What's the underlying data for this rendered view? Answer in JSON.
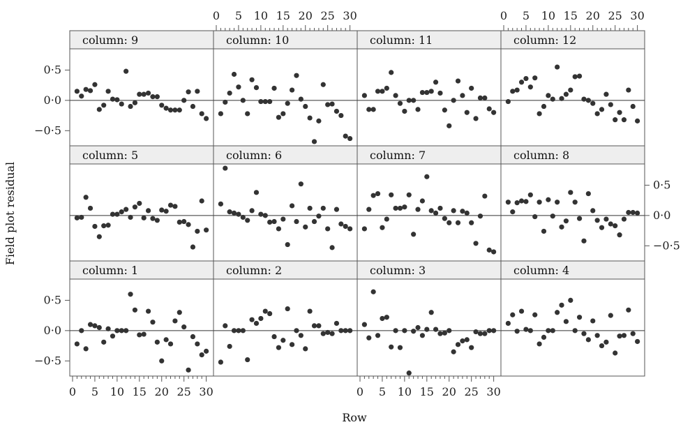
{
  "chart_data": {
    "type": "scatter",
    "xlabel": "Row",
    "ylabel": "Field plot residual",
    "xlim": [
      0,
      31
    ],
    "ylim": [
      -0.75,
      0.85
    ],
    "x_ticks": [
      0,
      5,
      10,
      15,
      20,
      25,
      30
    ],
    "x_tick_labels": [
      "0",
      "5",
      "10",
      "15",
      "20",
      "25",
      "30"
    ],
    "y_ticks": [
      -0.5,
      0.0,
      0.5
    ],
    "y_tick_labels": [
      "−0·5",
      "0·0",
      "0·5"
    ],
    "reference_line_y": 0,
    "colors": {
      "points": "#333333",
      "strip": "#eeeeee",
      "frame": "#555555",
      "refline": "#333333"
    },
    "panels": [
      {
        "label": "column: 9",
        "x": [
          1,
          2,
          3,
          4,
          5,
          6,
          7,
          8,
          9,
          10,
          11,
          12,
          13,
          14,
          15,
          16,
          17,
          18,
          19,
          20,
          21,
          22,
          23,
          24,
          25,
          26,
          27,
          28,
          29,
          30
        ],
        "y": [
          0.15,
          0.07,
          0.18,
          0.16,
          0.26,
          -0.15,
          -0.08,
          0.15,
          0.02,
          0.01,
          -0.06,
          0.48,
          -0.1,
          -0.04,
          0.1,
          0.1,
          0.12,
          0.06,
          0.06,
          -0.08,
          -0.13,
          -0.16,
          -0.16,
          -0.16,
          0.0,
          0.14,
          -0.1,
          0.15,
          -0.22,
          -0.3
        ]
      },
      {
        "label": "column: 10",
        "x": [
          1,
          2,
          3,
          4,
          5,
          6,
          7,
          8,
          9,
          10,
          11,
          12,
          13,
          14,
          15,
          16,
          17,
          18,
          19,
          20,
          21,
          22,
          23,
          24,
          25,
          26,
          27,
          28,
          29,
          30
        ],
        "y": [
          -0.22,
          -0.03,
          0.12,
          0.43,
          0.22,
          0.0,
          -0.22,
          0.34,
          0.21,
          -0.02,
          -0.02,
          -0.02,
          0.2,
          -0.28,
          -0.22,
          -0.05,
          0.17,
          0.41,
          0.02,
          -0.1,
          -0.29,
          -0.68,
          -0.34,
          0.26,
          -0.07,
          -0.06,
          -0.18,
          -0.25,
          -0.59,
          -0.63
        ]
      },
      {
        "label": "column: 11",
        "x": [
          1,
          2,
          3,
          4,
          5,
          6,
          7,
          8,
          9,
          10,
          11,
          12,
          13,
          14,
          15,
          16,
          17,
          18,
          19,
          20,
          21,
          22,
          23,
          24,
          25,
          26,
          27,
          28,
          29,
          30
        ],
        "y": [
          0.08,
          -0.15,
          -0.15,
          0.15,
          0.15,
          0.2,
          0.46,
          0.08,
          -0.05,
          -0.18,
          0.0,
          0.0,
          -0.15,
          0.13,
          0.13,
          0.15,
          0.3,
          0.12,
          -0.16,
          -0.42,
          0.0,
          0.32,
          0.08,
          -0.2,
          0.2,
          -0.3,
          0.04,
          0.04,
          -0.14,
          -0.2
        ]
      },
      {
        "label": "column: 12",
        "x": [
          1,
          2,
          3,
          4,
          5,
          6,
          7,
          8,
          9,
          10,
          11,
          12,
          13,
          14,
          15,
          16,
          17,
          18,
          19,
          20,
          21,
          22,
          23,
          24,
          25,
          26,
          27,
          28,
          29,
          30
        ],
        "y": [
          -0.02,
          0.15,
          0.17,
          0.3,
          0.36,
          0.22,
          0.37,
          -0.22,
          -0.1,
          0.08,
          0.02,
          0.55,
          0.03,
          0.1,
          0.17,
          0.39,
          0.4,
          0.02,
          0.0,
          -0.05,
          -0.22,
          -0.15,
          0.1,
          -0.07,
          -0.32,
          -0.2,
          -0.32,
          0.17,
          -0.1,
          -0.34
        ]
      },
      {
        "label": "column: 5",
        "x": [
          1,
          2,
          3,
          4,
          5,
          6,
          7,
          8,
          9,
          10,
          11,
          12,
          13,
          14,
          15,
          16,
          17,
          18,
          19,
          20,
          21,
          22,
          23,
          24,
          25,
          26,
          27,
          28,
          29,
          30
        ],
        "y": [
          -0.04,
          -0.03,
          0.3,
          0.12,
          -0.18,
          -0.35,
          -0.17,
          -0.16,
          0.02,
          0.02,
          0.06,
          0.1,
          -0.03,
          0.14,
          0.2,
          -0.04,
          0.08,
          -0.05,
          -0.08,
          0.09,
          0.07,
          0.17,
          0.15,
          -0.11,
          -0.1,
          -0.15,
          -0.52,
          -0.26,
          0.24,
          -0.24
        ]
      },
      {
        "label": "column: 6",
        "x": [
          1,
          2,
          3,
          4,
          5,
          6,
          7,
          8,
          9,
          10,
          11,
          12,
          13,
          14,
          15,
          16,
          17,
          18,
          19,
          20,
          21,
          22,
          23,
          24,
          25,
          26,
          27,
          28,
          29,
          30
        ],
        "y": [
          0.19,
          0.78,
          0.06,
          0.04,
          0.02,
          -0.03,
          -0.08,
          0.08,
          0.38,
          0.02,
          0.0,
          -0.11,
          -0.1,
          -0.22,
          -0.06,
          -0.48,
          0.16,
          -0.1,
          0.52,
          -0.19,
          0.12,
          -0.1,
          -0.01,
          0.12,
          -0.22,
          -0.53,
          0.1,
          -0.14,
          -0.18,
          -0.22
        ]
      },
      {
        "label": "column: 7",
        "x": [
          1,
          2,
          3,
          4,
          5,
          6,
          7,
          8,
          9,
          10,
          11,
          12,
          13,
          14,
          15,
          16,
          17,
          18,
          19,
          20,
          21,
          22,
          23,
          24,
          25,
          26,
          27,
          28,
          29,
          30
        ],
        "y": [
          -0.22,
          0.1,
          0.33,
          0.36,
          -0.2,
          -0.06,
          0.34,
          0.12,
          0.12,
          0.14,
          0.34,
          -0.31,
          0.1,
          0.24,
          0.64,
          0.08,
          0.04,
          0.12,
          -0.05,
          -0.12,
          0.08,
          -0.12,
          0.07,
          0.04,
          -0.12,
          -0.46,
          -0.01,
          0.32,
          -0.57,
          -0.6
        ]
      },
      {
        "label": "column: 8",
        "x": [
          1,
          2,
          3,
          4,
          5,
          6,
          7,
          8,
          9,
          10,
          11,
          12,
          13,
          14,
          15,
          16,
          17,
          18,
          19,
          20,
          21,
          22,
          23,
          24,
          25,
          26,
          27,
          28,
          29,
          30
        ],
        "y": [
          0.22,
          0.06,
          0.21,
          0.24,
          0.23,
          0.34,
          -0.02,
          0.22,
          -0.26,
          0.26,
          -0.01,
          0.22,
          -0.19,
          -0.09,
          0.38,
          0.22,
          -0.05,
          -0.42,
          0.36,
          0.08,
          -0.08,
          -0.2,
          -0.06,
          -0.14,
          -0.17,
          -0.32,
          -0.06,
          0.05,
          0.05,
          0.04
        ]
      },
      {
        "label": "column: 1",
        "x": [
          1,
          2,
          3,
          4,
          5,
          6,
          7,
          8,
          9,
          10,
          11,
          12,
          13,
          14,
          15,
          16,
          17,
          18,
          19,
          20,
          21,
          22,
          23,
          24,
          25,
          26,
          27,
          28,
          29,
          30
        ],
        "y": [
          -0.22,
          0.0,
          -0.3,
          0.1,
          0.08,
          0.05,
          -0.19,
          0.03,
          -0.09,
          0.0,
          0.0,
          0.0,
          0.6,
          0.34,
          -0.07,
          -0.06,
          0.32,
          0.14,
          -0.19,
          -0.5,
          -0.15,
          -0.22,
          0.16,
          0.3,
          0.06,
          -0.65,
          -0.1,
          -0.22,
          -0.4,
          -0.34
        ]
      },
      {
        "label": "column: 2",
        "x": [
          1,
          2,
          3,
          4,
          5,
          6,
          7,
          8,
          9,
          10,
          11,
          12,
          13,
          14,
          15,
          16,
          17,
          18,
          19,
          20,
          21,
          22,
          23,
          24,
          25,
          26,
          27,
          28,
          29,
          30
        ],
        "y": [
          -0.52,
          0.08,
          -0.26,
          0.0,
          0.0,
          0.0,
          -0.48,
          0.18,
          0.12,
          0.2,
          0.32,
          0.28,
          -0.1,
          -0.28,
          -0.16,
          0.36,
          -0.23,
          0.0,
          -0.08,
          -0.3,
          0.32,
          0.08,
          0.08,
          -0.05,
          -0.03,
          -0.05,
          0.12,
          0.0,
          0.0,
          0.0
        ]
      },
      {
        "label": "column: 3",
        "x": [
          1,
          2,
          3,
          4,
          5,
          6,
          7,
          8,
          9,
          10,
          11,
          12,
          13,
          14,
          15,
          16,
          17,
          18,
          19,
          20,
          21,
          22,
          23,
          24,
          25,
          26,
          27,
          28,
          29,
          30
        ],
        "y": [
          0.1,
          -0.12,
          0.64,
          -0.08,
          0.2,
          0.22,
          -0.27,
          0.0,
          -0.28,
          0.0,
          -0.7,
          -0.01,
          0.05,
          -0.08,
          0.02,
          0.3,
          0.02,
          -0.05,
          -0.04,
          0.0,
          -0.35,
          -0.23,
          -0.17,
          -0.15,
          -0.28,
          -0.02,
          -0.05,
          -0.05,
          0.0,
          0.0
        ]
      },
      {
        "label": "column: 4",
        "x": [
          1,
          2,
          3,
          4,
          5,
          6,
          7,
          8,
          9,
          10,
          11,
          12,
          13,
          14,
          15,
          16,
          17,
          18,
          19,
          20,
          21,
          22,
          23,
          24,
          25,
          26,
          27,
          28,
          29,
          30
        ],
        "y": [
          0.12,
          0.26,
          -0.01,
          0.32,
          0.02,
          0.0,
          0.26,
          -0.22,
          -0.11,
          0.0,
          0.0,
          0.3,
          0.42,
          0.15,
          0.5,
          0.0,
          0.22,
          -0.05,
          -0.15,
          0.16,
          -0.08,
          -0.25,
          -0.19,
          0.25,
          -0.37,
          -0.09,
          -0.08,
          0.34,
          -0.05,
          -0.18
        ]
      }
    ]
  }
}
